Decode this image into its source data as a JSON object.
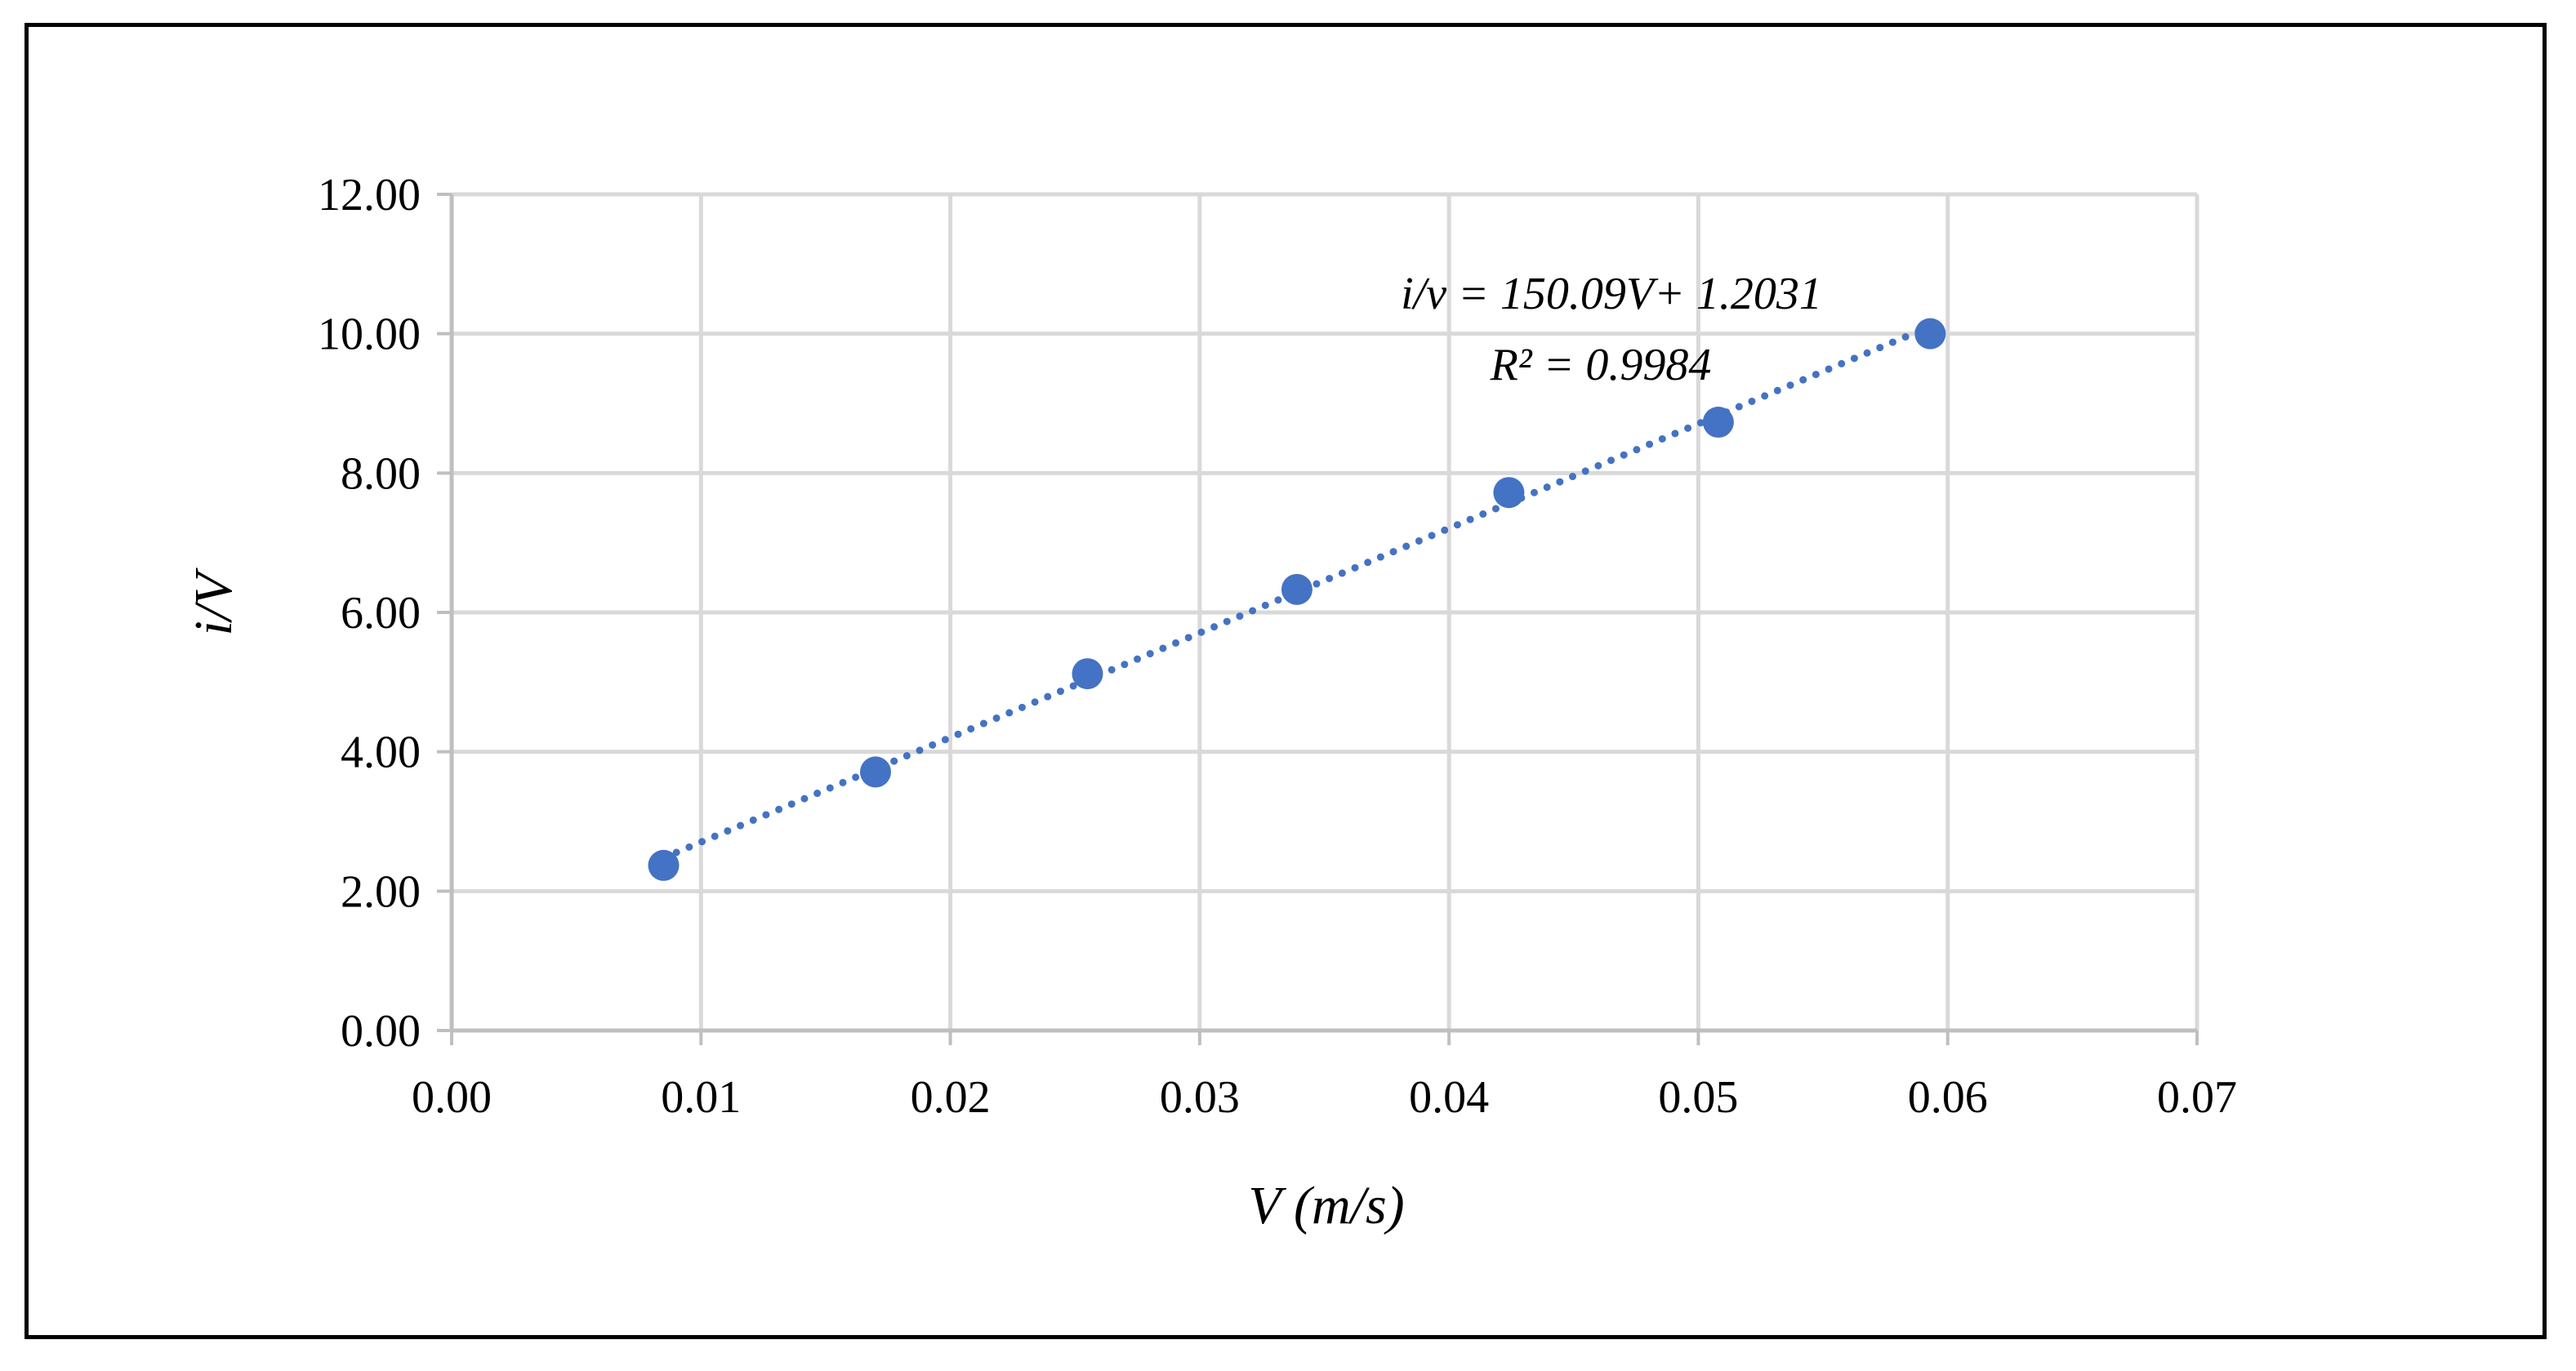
{
  "chart_data": {
    "type": "scatter",
    "title": "",
    "xlabel": "V (m/s)",
    "ylabel": "i/V",
    "xlim": [
      0,
      0.07
    ],
    "ylim": [
      0,
      12
    ],
    "x_ticks": [
      0,
      0.01,
      0.02,
      0.03,
      0.04,
      0.05,
      0.06,
      0.07
    ],
    "x_tick_labels": [
      "0.00",
      "0.01",
      "0.02",
      "0.03",
      "0.04",
      "0.05",
      "0.06",
      "0.07"
    ],
    "y_ticks": [
      0,
      2,
      4,
      6,
      8,
      10,
      12
    ],
    "y_tick_labels": [
      "0.00",
      "2.00",
      "4.00",
      "6.00",
      "8.00",
      "10.00",
      "12.00"
    ],
    "grid": true,
    "series": [
      {
        "name": "i/V",
        "color": "#4472C4",
        "x": [
          0.0085,
          0.017,
          0.0255,
          0.0339,
          0.0424,
          0.0508,
          0.0593
        ],
        "y": [
          2.37,
          3.71,
          5.12,
          6.33,
          7.72,
          8.73,
          10.0
        ]
      }
    ],
    "trendline": {
      "type": "linear",
      "style": "dotted",
      "color": "#4472C4",
      "slope": 150.09,
      "intercept": 1.2031,
      "x_range": [
        0.0085,
        0.0593
      ]
    },
    "annotations": {
      "equation": "i/v = 150.09V+ 1.2031",
      "r_squared": "R² = 0.9984"
    },
    "colors": {
      "grid": "#d9d9d9",
      "axis": "#bfbfbf",
      "marker": "#4472C4",
      "frame": "#000000"
    }
  }
}
